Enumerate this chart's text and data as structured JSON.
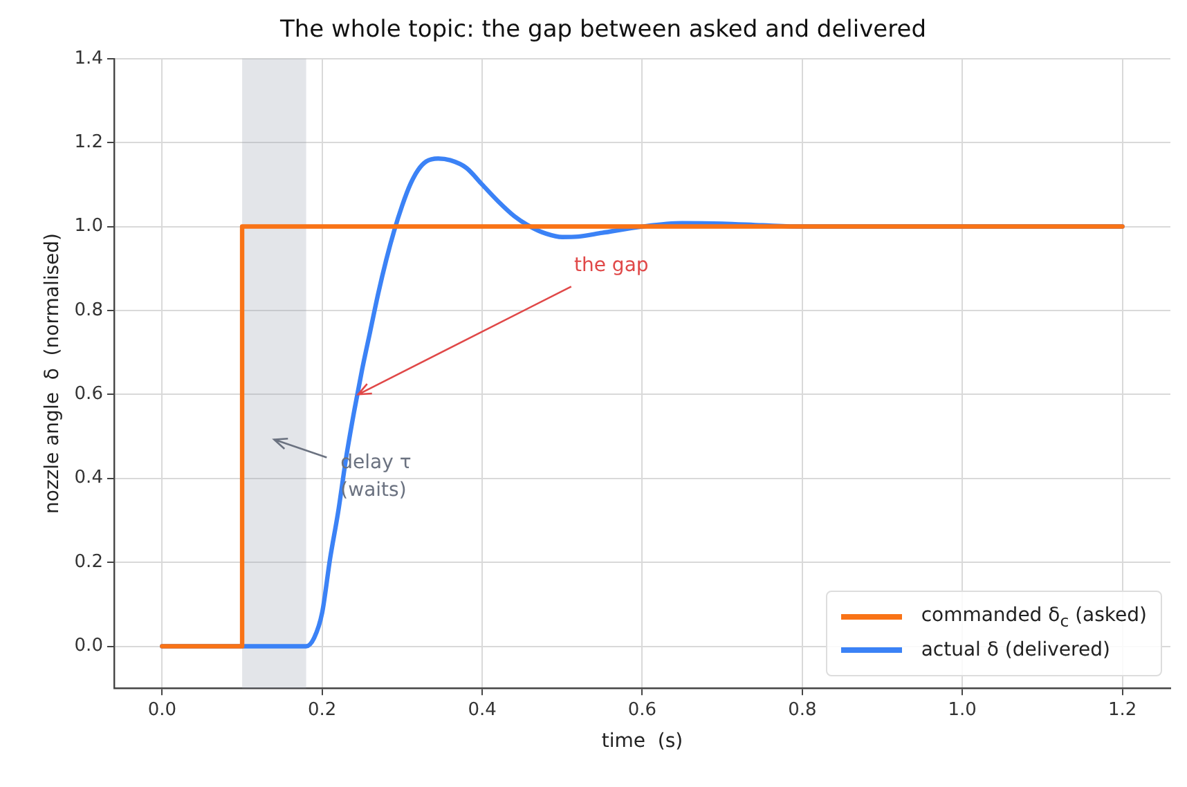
{
  "chart_data": {
    "type": "line",
    "title": "The whole topic: the gap between asked and delivered",
    "xlabel": "time  (s)",
    "ylabel": "nozzle angle  δ  (normalised)",
    "xlim": [
      -0.06,
      1.26
    ],
    "ylim": [
      -0.1,
      1.4
    ],
    "xticks": [
      {
        "value": 0,
        "label": "0.0"
      },
      {
        "value": 0.2,
        "label": "0.2"
      },
      {
        "value": 0.4,
        "label": "0.4"
      },
      {
        "value": 0.6,
        "label": "0.6"
      },
      {
        "value": 0.8,
        "label": "0.8"
      },
      {
        "value": 1.0,
        "label": "1.0"
      },
      {
        "value": 1.2,
        "label": "1.2"
      }
    ],
    "yticks": [
      {
        "value": 0,
        "label": "0.0"
      },
      {
        "value": 0.2,
        "label": "0.2"
      },
      {
        "value": 0.4,
        "label": "0.4"
      },
      {
        "value": 0.6,
        "label": "0.6"
      },
      {
        "value": 0.8,
        "label": "0.8"
      },
      {
        "value": 1.0,
        "label": "1.0"
      },
      {
        "value": 1.2,
        "label": "1.2"
      },
      {
        "value": 1.4,
        "label": "1.4"
      }
    ],
    "grid": true,
    "legend": "bottom right",
    "line_style": "solid",
    "marker": "none",
    "series": [
      {
        "name": "commanded δ$_{c}$ (asked)",
        "color": "#f97316",
        "x": [
          0,
          0.1,
          0.1,
          1.2
        ],
        "values": [
          0,
          0,
          1,
          1
        ]
      },
      {
        "name": "actual δ (delivered)",
        "color": "#3b82f6",
        "x": [
          0,
          0.18,
          0.19,
          0.2,
          0.21,
          0.22,
          0.23,
          0.24,
          0.25,
          0.26,
          0.27,
          0.28,
          0.29,
          0.3,
          0.31,
          0.32,
          0.33,
          0.345,
          0.36,
          0.38,
          0.4,
          0.42,
          0.44,
          0.46,
          0.48,
          0.5,
          0.52,
          0.55,
          0.6,
          0.65,
          0.7,
          0.75,
          0.8,
          1.2
        ],
        "values": [
          0,
          0,
          0.02,
          0.08,
          0.21,
          0.32,
          0.45,
          0.56,
          0.66,
          0.75,
          0.84,
          0.92,
          0.99,
          1.05,
          1.1,
          1.135,
          1.155,
          1.162,
          1.158,
          1.14,
          1.1,
          1.06,
          1.025,
          1.0,
          0.983,
          0.975,
          0.976,
          0.985,
          1.0,
          1.008,
          1.007,
          1.003,
          1.0,
          1.0
        ]
      }
    ],
    "bands": [
      {
        "axis": "x",
        "from": 0.1,
        "to": 0.18,
        "color": "#9ca3af"
      }
    ],
    "annotations": [
      {
        "text": "the gap",
        "x": 0.245,
        "y": 0.6
      },
      "delay τ\n(waits)"
    ]
  }
}
